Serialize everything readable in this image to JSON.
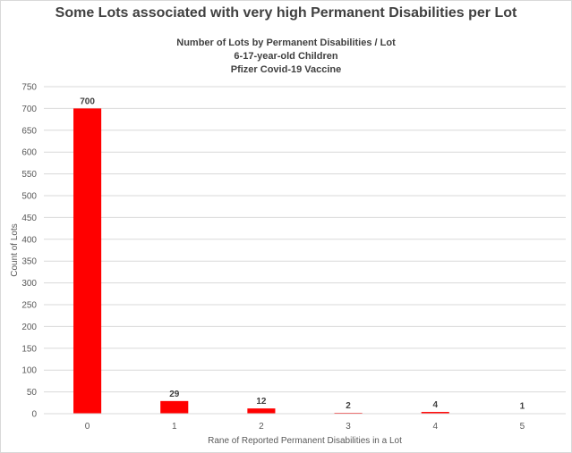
{
  "chart_data": {
    "type": "bar",
    "title": "Some Lots associated with very high Permanent Disabilities per Lot",
    "subtitle_lines": [
      "Number of Lots by Permanent Disabilities / Lot",
      "6-17-year-old Children",
      "Pfizer Covid-19 Vaccine"
    ],
    "xlabel": "Rane of Reported Permanent Disabilities in a Lot",
    "ylabel": "Count of Lots",
    "categories": [
      "0",
      "1",
      "2",
      "3",
      "4",
      "5"
    ],
    "values": [
      700,
      29,
      12,
      2,
      4,
      1
    ],
    "ylim": [
      0,
      750
    ],
    "yticks": [
      0,
      50,
      100,
      150,
      200,
      250,
      300,
      350,
      400,
      450,
      500,
      550,
      600,
      650,
      700,
      750
    ],
    "grid": true,
    "bar_color": "#ff0000",
    "data_labels": true
  }
}
